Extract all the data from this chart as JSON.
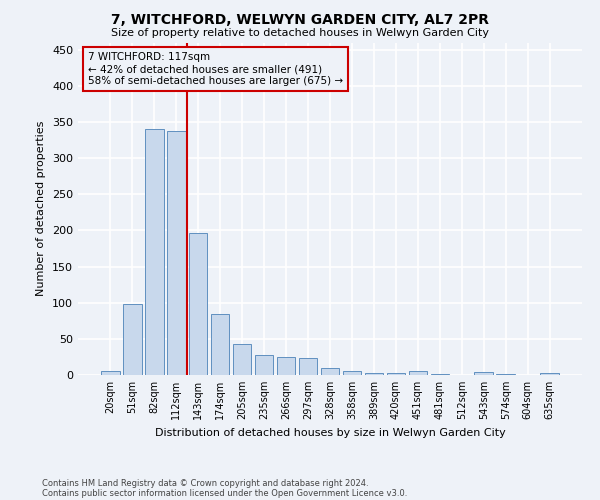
{
  "title": "7, WITCHFORD, WELWYN GARDEN CITY, AL7 2PR",
  "subtitle": "Size of property relative to detached houses in Welwyn Garden City",
  "xlabel": "Distribution of detached houses by size in Welwyn Garden City",
  "ylabel": "Number of detached properties",
  "bar_color": "#c8d8ec",
  "bar_edge_color": "#6090c0",
  "bar_edge_width": 0.7,
  "categories": [
    "20sqm",
    "51sqm",
    "82sqm",
    "112sqm",
    "143sqm",
    "174sqm",
    "205sqm",
    "235sqm",
    "266sqm",
    "297sqm",
    "328sqm",
    "358sqm",
    "389sqm",
    "420sqm",
    "451sqm",
    "481sqm",
    "512sqm",
    "543sqm",
    "574sqm",
    "604sqm",
    "635sqm"
  ],
  "values": [
    5,
    98,
    340,
    338,
    197,
    84,
    43,
    27,
    25,
    24,
    10,
    6,
    3,
    3,
    6,
    1,
    0,
    4,
    1,
    0,
    3
  ],
  "ylim": [
    0,
    460
  ],
  "yticks": [
    0,
    50,
    100,
    150,
    200,
    250,
    300,
    350,
    400,
    450
  ],
  "vline_color": "#cc0000",
  "vline_pos": 3.5,
  "annotation_line1": "7 WITCHFORD: 117sqm",
  "annotation_line2": "← 42% of detached houses are smaller (491)",
  "annotation_line3": "58% of semi-detached houses are larger (675) →",
  "bg_color": "#eef2f8",
  "grid_color": "#ffffff",
  "footer_line1": "Contains HM Land Registry data © Crown copyright and database right 2024.",
  "footer_line2": "Contains public sector information licensed under the Open Government Licence v3.0."
}
